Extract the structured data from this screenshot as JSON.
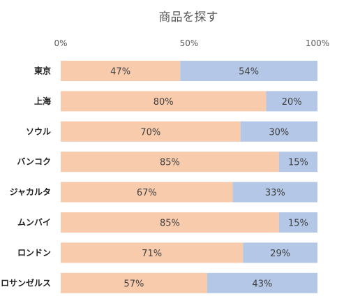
{
  "chart_data": {
    "type": "bar",
    "orientation": "horizontal",
    "stacked": "100%",
    "title": "商品を探す",
    "categories": [
      "東京",
      "上海",
      "ソウル",
      "バンコク",
      "ジャカルタ",
      "ムンバイ",
      "ロンドン",
      "ロサンゼルス"
    ],
    "series": [
      {
        "values": [
          47,
          80,
          70,
          85,
          67,
          85,
          71,
          57
        ],
        "color": "#F8CBAD"
      },
      {
        "values": [
          54,
          20,
          30,
          15,
          33,
          15,
          29,
          43
        ],
        "color": "#B4C7E7"
      }
    ],
    "xlim": [
      0,
      100
    ],
    "x_ticks": [
      "0%",
      "50%",
      "100%"
    ],
    "value_suffix": "%",
    "grid": false,
    "legend": "none"
  }
}
